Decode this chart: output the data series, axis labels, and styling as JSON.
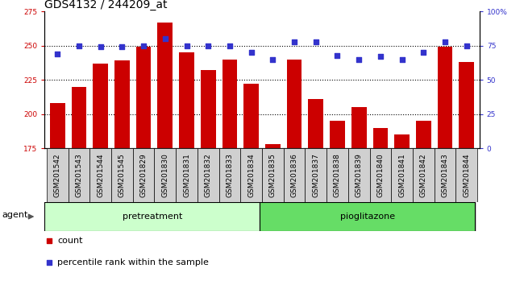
{
  "title": "GDS4132 / 244209_at",
  "samples": [
    "GSM201542",
    "GSM201543",
    "GSM201544",
    "GSM201545",
    "GSM201829",
    "GSM201830",
    "GSM201831",
    "GSM201832",
    "GSM201833",
    "GSM201834",
    "GSM201835",
    "GSM201836",
    "GSM201837",
    "GSM201838",
    "GSM201839",
    "GSM201840",
    "GSM201841",
    "GSM201842",
    "GSM201843",
    "GSM201844"
  ],
  "counts": [
    208,
    220,
    237,
    239,
    249,
    267,
    245,
    232,
    240,
    222,
    178,
    240,
    211,
    195,
    205,
    190,
    185,
    195,
    249,
    238
  ],
  "percentiles": [
    69,
    75,
    74,
    74,
    75,
    80,
    75,
    75,
    75,
    70,
    65,
    78,
    78,
    68,
    65,
    67,
    65,
    70,
    78,
    75
  ],
  "bar_color": "#cc0000",
  "dot_color": "#3333cc",
  "ylim_left": [
    175,
    275
  ],
  "ylim_right": [
    0,
    100
  ],
  "yticks_left": [
    175,
    200,
    225,
    250,
    275
  ],
  "yticks_right": [
    0,
    25,
    50,
    75,
    100
  ],
  "n_pretreatment": 10,
  "pretreatment_label": "pretreatment",
  "pioglitazone_label": "pioglitazone",
  "agent_label": "agent",
  "legend_count_label": "count",
  "legend_pct_label": "percentile rank within the sample",
  "bg_pretreatment": "#ccffcc",
  "bg_pioglitazone": "#66dd66",
  "title_fontsize": 10,
  "tick_fontsize": 6.5,
  "label_fontsize": 8
}
